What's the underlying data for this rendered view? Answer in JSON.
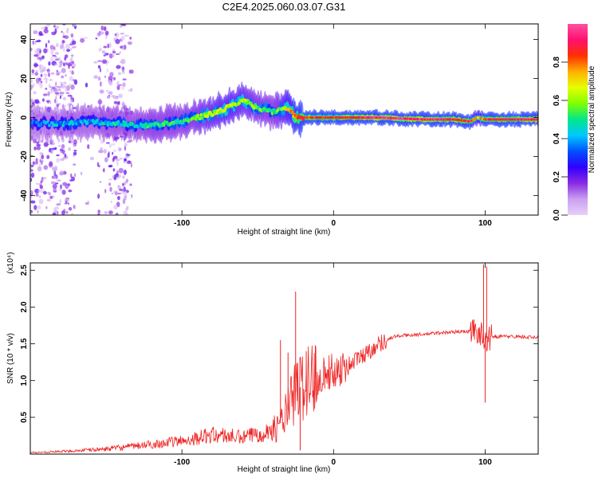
{
  "page": {
    "title": "C2E4.2025.060.03.07.G31"
  },
  "chart_data": [
    {
      "type": "heatmap",
      "title": "C2E4.2025.060.03.07.G31",
      "xlabel": "Height of straight line (km)",
      "ylabel": "Frequency (Hz)",
      "xlim": [
        -200,
        135
      ],
      "ylim": [
        -50,
        48
      ],
      "xticks": [
        -100,
        0,
        100
      ],
      "yticks": [
        -40,
        -20,
        0,
        20,
        40
      ],
      "colorbar": {
        "label": "Normalized spectral amplitude",
        "range": [
          0,
          1
        ],
        "ticks": [
          "0.0",
          "0.2",
          "0.4",
          "0.6",
          "0.8"
        ],
        "colors": [
          "#e8d0f8",
          "#c9a0f0",
          "#8a2be2",
          "#3000ff",
          "#0050ff",
          "#00c8ff",
          "#00e68c",
          "#80ff00",
          "#e6ff00",
          "#ffb000",
          "#ff3000",
          "#ff1070",
          "#ff50a0"
        ]
      },
      "ridge": {
        "x": [
          -195,
          -175,
          -160,
          -150,
          -140,
          -130,
          -120,
          -110,
          -100,
          -90,
          -80,
          -70,
          -60,
          -50,
          -40,
          -30,
          -25,
          -20,
          -10,
          0,
          10,
          30,
          60,
          80,
          90,
          95,
          100,
          135
        ],
        "y": [
          -3,
          -3,
          -2,
          -3,
          -3,
          -4,
          -4,
          -3,
          -2,
          0,
          2,
          5,
          9,
          5,
          3,
          5,
          0,
          0,
          0,
          0,
          0,
          0,
          -1,
          -1,
          -2,
          0,
          -1,
          -1
        ],
        "amplitude": [
          0.35,
          0.4,
          0.4,
          0.45,
          0.45,
          0.45,
          0.5,
          0.5,
          0.5,
          0.55,
          0.6,
          0.65,
          0.6,
          0.55,
          0.5,
          0.7,
          0.8,
          0.85,
          0.85,
          0.85,
          0.9,
          0.95,
          0.95,
          0.9,
          0.85,
          0.7,
          0.85,
          0.95
        ]
      }
    },
    {
      "type": "line",
      "xlabel": "Height of straight line (km)",
      "ylabel": "SNR (10 * v/v)",
      "yscale_label": "(x10⁴)",
      "xlim": [
        -200,
        135
      ],
      "ylim": [
        0,
        2.6
      ],
      "xticks": [
        -100,
        0,
        100
      ],
      "yticks": [
        "0.5",
        "1.0",
        "1.5",
        "2.0",
        "2.5"
      ],
      "color": "#ee2222",
      "envelope": {
        "x": [
          -200,
          -175,
          -150,
          -125,
          -100,
          -90,
          -80,
          -70,
          -60,
          -50,
          -40,
          -35,
          -30,
          -25,
          -20,
          -15,
          -10,
          0,
          10,
          20,
          30,
          40,
          50,
          60,
          70,
          80,
          90,
          95,
          98,
          100,
          102,
          105,
          110,
          120,
          135
        ],
        "y": [
          0.02,
          0.04,
          0.07,
          0.12,
          0.18,
          0.22,
          0.26,
          0.25,
          0.22,
          0.28,
          0.32,
          0.42,
          0.6,
          0.85,
          0.95,
          1.0,
          1.08,
          1.12,
          1.22,
          1.35,
          1.5,
          1.6,
          1.62,
          1.63,
          1.65,
          1.66,
          1.67,
          1.68,
          1.6,
          1.6,
          1.55,
          1.6,
          1.6,
          1.6,
          1.58
        ]
      },
      "spikes": [
        {
          "x": -35,
          "y": 1.55
        },
        {
          "x": -30,
          "y": 1.38
        },
        {
          "x": -25,
          "y": 2.21
        },
        {
          "x": -22,
          "y": 0.05
        },
        {
          "x": -18,
          "y": 1.4
        },
        {
          "x": -12,
          "y": 1.48
        },
        {
          "x": 99,
          "y": 2.58
        },
        {
          "x": 100,
          "y": 0.7
        },
        {
          "x": 101,
          "y": 2.55
        }
      ]
    }
  ]
}
